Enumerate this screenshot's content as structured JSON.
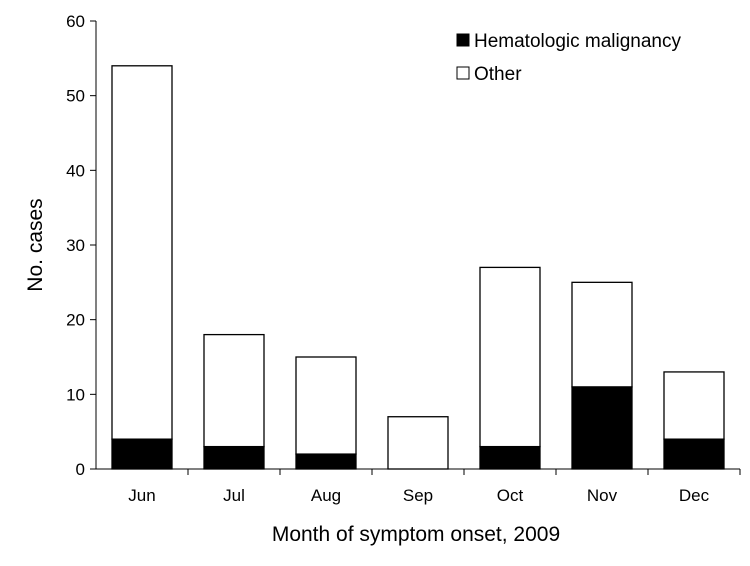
{
  "chart_data": {
    "type": "bar",
    "stacked": true,
    "title": "",
    "xlabel": "Month of symptom onset, 2009",
    "ylabel": "No. cases",
    "ylim": [
      0,
      60
    ],
    "yticks": [
      0,
      10,
      20,
      30,
      40,
      50,
      60
    ],
    "grid": false,
    "legend_position": "top-right",
    "categories": [
      "Jun",
      "Jul",
      "Aug",
      "Sep",
      "Oct",
      "Nov",
      "Dec"
    ],
    "series": [
      {
        "name": "Hematologic malignancy",
        "color": "#000000",
        "values": [
          4,
          3,
          2,
          0,
          3,
          11,
          4
        ]
      },
      {
        "name": "Other",
        "color": "#ffffff",
        "values": [
          50,
          15,
          13,
          7,
          24,
          14,
          9
        ]
      }
    ]
  }
}
